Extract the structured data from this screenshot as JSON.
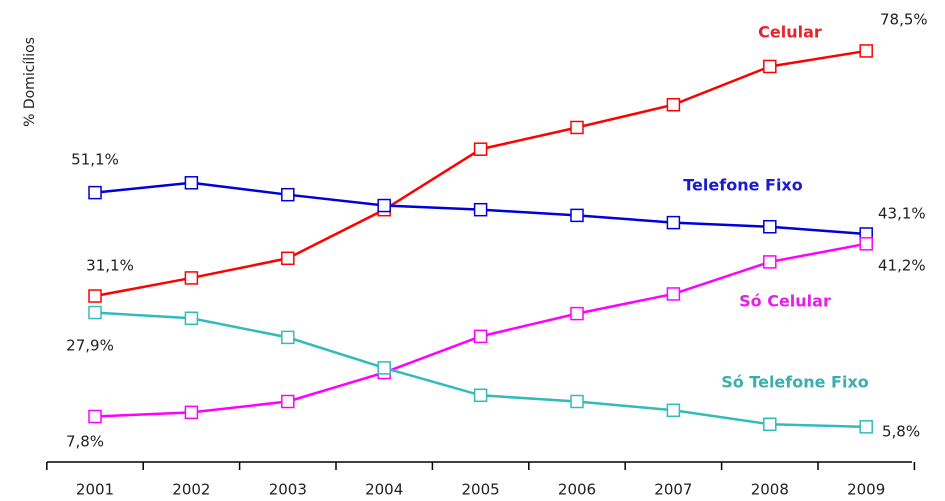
{
  "chart_data": {
    "type": "line",
    "y_label": "% Domicílios",
    "categories": [
      "2001",
      "2002",
      "2003",
      "2004",
      "2005",
      "2006",
      "2007",
      "2008",
      "2009"
    ],
    "ylim": [
      -1,
      87
    ],
    "series": [
      {
        "name": "Celular",
        "color": "#ff0000",
        "label_color": "#e8232a",
        "values": [
          31.1,
          34.6,
          38.4,
          47.8,
          59.5,
          63.7,
          68.1,
          75.5,
          78.5
        ],
        "value_labels": [
          "31,1%",
          null,
          null,
          null,
          null,
          null,
          null,
          null,
          "78,5%"
        ]
      },
      {
        "name": "Telefone Fixo",
        "color": "#0000dd",
        "label_color": "#1a1ad0",
        "values": [
          51.1,
          53.0,
          50.7,
          48.6,
          47.8,
          46.7,
          45.3,
          44.5,
          43.1
        ],
        "value_labels": [
          "51,1%",
          null,
          null,
          null,
          null,
          null,
          null,
          null,
          "43,1%"
        ]
      },
      {
        "name": "Só Celular",
        "color": "#ff00ff",
        "label_color": "#e81ee8",
        "values": [
          7.8,
          8.6,
          10.7,
          16.3,
          23.3,
          27.7,
          31.5,
          37.7,
          41.2
        ],
        "value_labels": [
          "7,8%",
          null,
          null,
          null,
          null,
          null,
          null,
          null,
          "41,2%"
        ]
      },
      {
        "name": "Só Telefone Fixo",
        "color": "#33bbbb",
        "label_color": "#3aaeae",
        "values": [
          27.9,
          26.8,
          23.1,
          17.2,
          11.9,
          10.7,
          9.0,
          6.3,
          5.8
        ],
        "value_labels": [
          "27,9%",
          null,
          null,
          null,
          null,
          null,
          null,
          null,
          "5,8%"
        ]
      }
    ]
  }
}
